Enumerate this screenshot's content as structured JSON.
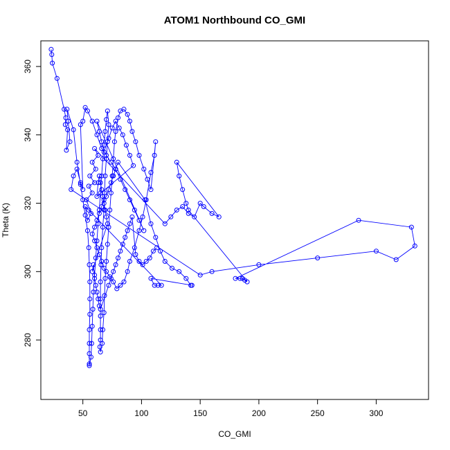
{
  "chart_data": {
    "type": "scatter",
    "title": "ATOM1 Northbound CO_GMI",
    "xlabel": "CO_GMI",
    "ylabel": "Theta (K)",
    "xlim": [
      14.2,
      344.6
    ],
    "ylim": [
      262.6,
      367.5
    ],
    "xticks": [
      50,
      100,
      150,
      200,
      250,
      300
    ],
    "yticks": [
      280,
      300,
      320,
      340,
      360
    ],
    "grid": false,
    "legend": "none",
    "colors": {
      "series": "#0000ff",
      "axis": "#000000"
    },
    "series": [
      {
        "points": [
          [
            23,
            365
          ],
          [
            23.5,
            363.5
          ],
          [
            24,
            361
          ],
          [
            28,
            356.5
          ],
          [
            34,
            347.5
          ],
          [
            35.5,
            345
          ],
          [
            35,
            343
          ],
          [
            37,
            341.5
          ],
          [
            36,
            335.5
          ],
          [
            39,
            338
          ],
          [
            37.5,
            344
          ],
          [
            36.5,
            347.5
          ],
          [
            42,
            341.5
          ],
          [
            45,
            332
          ],
          [
            48,
            325.5
          ],
          [
            50,
            321
          ],
          [
            52,
            316.5
          ],
          [
            54,
            312
          ],
          [
            55,
            307
          ],
          [
            55.5,
            302
          ],
          [
            56,
            297
          ],
          [
            56,
            292
          ],
          [
            56,
            287.5
          ],
          [
            55.5,
            283
          ],
          [
            55.5,
            279
          ],
          [
            55.5,
            276
          ],
          [
            55.5,
            273
          ],
          [
            55.5,
            272.5
          ],
          [
            57,
            275
          ],
          [
            57.5,
            279
          ],
          [
            58,
            284
          ],
          [
            58.5,
            289
          ],
          [
            59,
            294
          ],
          [
            60,
            299
          ],
          [
            61,
            304
          ],
          [
            62,
            309
          ],
          [
            63,
            314
          ],
          [
            64,
            318
          ],
          [
            65,
            323
          ],
          [
            66,
            328
          ],
          [
            67,
            333
          ],
          [
            68,
            337
          ],
          [
            69,
            341
          ],
          [
            70,
            344.5
          ],
          [
            71,
            347
          ],
          [
            72,
            343
          ],
          [
            71,
            338
          ],
          [
            70,
            333
          ],
          [
            69,
            328
          ],
          [
            68.5,
            323
          ],
          [
            68,
            318
          ],
          [
            67,
            313
          ],
          [
            66,
            307
          ],
          [
            65.5,
            302
          ],
          [
            65,
            297
          ],
          [
            65,
            292
          ],
          [
            65,
            287
          ],
          [
            65,
            283
          ],
          [
            65,
            280
          ],
          [
            64.5,
            278
          ],
          [
            65,
            276.5
          ],
          [
            66.5,
            279
          ],
          [
            67,
            283
          ],
          [
            68,
            288
          ],
          [
            68.5,
            293
          ],
          [
            69,
            298
          ],
          [
            70,
            303
          ],
          [
            71,
            308
          ],
          [
            72,
            313
          ],
          [
            73,
            318
          ],
          [
            74,
            323
          ],
          [
            75,
            328
          ],
          [
            76,
            333
          ],
          [
            77,
            338
          ],
          [
            78,
            341
          ],
          [
            80,
            345
          ],
          [
            82,
            347
          ],
          [
            85,
            347.5
          ],
          [
            88,
            346
          ],
          [
            90,
            344
          ],
          [
            92,
            341
          ],
          [
            95,
            338
          ],
          [
            98,
            334
          ],
          [
            102,
            330
          ],
          [
            105,
            327
          ],
          [
            108,
            324
          ],
          [
            112,
            338
          ],
          [
            111,
            334
          ],
          [
            108,
            329
          ],
          [
            104,
            321
          ],
          [
            101,
            316
          ],
          [
            98,
            312
          ],
          [
            94,
            307
          ],
          [
            90,
            303
          ],
          [
            88,
            300
          ],
          [
            85,
            297
          ],
          [
            82,
            296
          ],
          [
            79,
            295
          ],
          [
            76,
            297
          ],
          [
            73,
            298.5
          ],
          [
            70,
            300
          ],
          [
            68,
            301
          ],
          [
            66,
            303
          ],
          [
            64,
            305
          ],
          [
            62,
            307
          ],
          [
            60,
            309
          ],
          [
            58,
            311
          ],
          [
            60,
            313
          ],
          [
            62,
            315
          ],
          [
            64,
            317
          ],
          [
            66,
            319
          ],
          [
            68,
            321
          ],
          [
            70,
            322
          ],
          [
            72,
            324
          ],
          [
            74,
            326
          ],
          [
            76,
            328
          ],
          [
            78,
            330
          ],
          [
            80,
            332
          ],
          [
            103,
            321
          ],
          [
            108,
            314
          ],
          [
            112,
            310
          ],
          [
            116,
            306
          ],
          [
            120,
            303
          ],
          [
            126,
            301
          ],
          [
            132,
            300
          ],
          [
            138,
            298
          ],
          [
            142,
            296
          ],
          [
            143,
            296
          ],
          [
            108,
            298
          ],
          [
            111,
            296
          ],
          [
            114,
            296
          ],
          [
            117,
            296
          ],
          [
            55,
            318
          ],
          [
            52,
            319
          ],
          [
            54,
            315
          ],
          [
            57,
            317
          ],
          [
            53,
            321
          ],
          [
            58,
            323
          ],
          [
            55,
            325
          ],
          [
            60,
            326
          ],
          [
            56,
            328
          ],
          [
            61,
            330
          ],
          [
            58,
            332
          ],
          [
            63,
            334
          ],
          [
            60,
            336
          ],
          [
            120,
            314
          ],
          [
            125,
            316
          ],
          [
            130,
            318
          ],
          [
            135,
            319
          ],
          [
            140,
            317
          ],
          [
            145,
            316
          ],
          [
            150,
            320
          ],
          [
            153,
            319
          ],
          [
            160,
            317
          ],
          [
            166,
            316
          ],
          [
            130,
            332
          ],
          [
            132,
            328
          ],
          [
            135,
            324
          ],
          [
            138,
            320
          ],
          [
            140,
            318
          ],
          [
            190,
            297
          ],
          [
            188,
            297.5
          ],
          [
            186,
            298
          ],
          [
            184,
            298
          ],
          [
            180,
            298
          ],
          [
            285,
            315
          ],
          [
            330,
            313
          ],
          [
            333,
            307.5
          ],
          [
            317,
            303.5
          ],
          [
            300,
            306
          ],
          [
            250,
            304
          ],
          [
            200,
            302
          ],
          [
            160,
            300
          ],
          [
            150,
            299
          ],
          [
            40,
            324
          ],
          [
            42,
            328
          ],
          [
            45,
            330
          ],
          [
            48,
            326
          ],
          [
            50,
            324
          ],
          [
            48,
            343
          ],
          [
            50,
            344
          ],
          [
            52,
            348
          ],
          [
            54,
            347
          ],
          [
            58,
            344
          ],
          [
            62,
            340
          ],
          [
            66,
            336
          ],
          [
            70,
            334
          ],
          [
            74,
            332
          ],
          [
            78,
            330
          ],
          [
            82,
            327
          ],
          [
            86,
            324
          ],
          [
            90,
            321
          ],
          [
            94,
            318
          ],
          [
            98,
            315
          ],
          [
            102,
            312
          ],
          [
            62,
            344
          ],
          [
            64,
            341
          ],
          [
            66,
            338
          ],
          [
            68,
            335
          ],
          [
            72,
            339
          ],
          [
            75,
            342
          ],
          [
            78,
            344
          ],
          [
            81,
            342
          ],
          [
            84,
            340
          ],
          [
            87,
            337
          ],
          [
            90,
            334
          ],
          [
            93,
            331
          ],
          [
            62,
            322
          ],
          [
            63,
            326
          ],
          [
            64,
            328
          ],
          [
            65,
            326
          ],
          [
            66,
            324
          ],
          [
            67,
            322
          ],
          [
            68,
            320
          ],
          [
            69,
            318
          ],
          [
            70,
            316
          ],
          [
            71,
            314
          ],
          [
            58,
            300
          ],
          [
            59,
            302
          ],
          [
            60,
            298
          ],
          [
            61,
            296
          ],
          [
            62,
            294
          ],
          [
            63,
            292
          ],
          [
            64,
            290
          ],
          [
            65,
            289
          ],
          [
            72,
            296
          ],
          [
            74,
            298
          ],
          [
            76,
            300
          ],
          [
            78,
            302
          ],
          [
            80,
            304
          ],
          [
            82,
            306
          ],
          [
            84,
            308
          ],
          [
            86,
            310
          ],
          [
            88,
            312
          ],
          [
            90,
            314
          ],
          [
            92,
            316
          ],
          [
            95,
            305
          ],
          [
            98,
            303
          ],
          [
            101,
            302
          ],
          [
            104,
            303
          ],
          [
            107,
            304
          ],
          [
            110,
            306
          ],
          [
            113,
            307
          ]
        ]
      }
    ]
  }
}
